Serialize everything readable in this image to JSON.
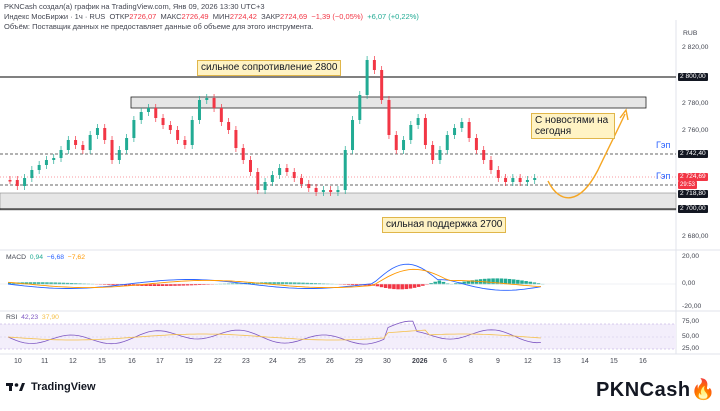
{
  "header": {
    "line1": "PKNCash создал(а) график на TradingView.com, Янв 09, 2026 13:30 UTC+3",
    "symbol": "Индекс МосБиржи · 1ч · RUS",
    "o_label": "ОТКР",
    "o_value": "2726,07",
    "h_label": "МАКС",
    "h_value": "2726,49",
    "l_label": "МИН",
    "l_value": "2724,42",
    "c_label": "ЗАКР",
    "c_value": "2724,69",
    "change": "−1,39 (−0,05%)",
    "change2": "+6,07 (+0,22%)",
    "volume_note": "Объём: Поставщик данных не предоставляет данные об объеме для этого инструмента.",
    "currency": "RUB"
  },
  "annotations": {
    "resistance": "сильное сопротивление 2800",
    "support": "сильная поддержка 2700",
    "news": "С новостями на сегодня",
    "gap1": "Гэп",
    "gap2": "Гэп"
  },
  "price_axis": {
    "ticks": [
      "2820,00",
      "2800,00",
      "2780,00",
      "2760,00",
      "2742,40",
      "2724,69",
      "2718,80",
      "2700,00",
      "2680,00"
    ],
    "tag_2800": "2 800,00",
    "tag_gap": "2 742,40",
    "tag_last": "2 724,69",
    "tag_timer": "29:53",
    "tag_low": "2 718,80",
    "tag_2700": "2 700,00",
    "plain": [
      "2 820,00",
      "2 780,00",
      "2 760,00",
      "2 680,00"
    ]
  },
  "macd": {
    "label": "MACD",
    "v1": "0,94",
    "v2": "−6,68",
    "v3": "−7,62",
    "ticks": [
      "20,00",
      "0,00",
      "-20,00"
    ]
  },
  "rsi": {
    "label": "RSI",
    "v1": "42,23",
    "v2": "37,90",
    "ticks": [
      "75,00",
      "50,00",
      "25,00"
    ]
  },
  "time_axis": [
    "10",
    "11",
    "12",
    "15",
    "16",
    "17",
    "19",
    "22",
    "23",
    "24",
    "25",
    "26",
    "29",
    "30",
    "2026",
    "6",
    "8",
    "9",
    "12",
    "13",
    "14",
    "15",
    "16"
  ],
  "footer": {
    "tv": "TradingView",
    "brand": "PKNCash"
  },
  "colors": {
    "up": "#22ab94",
    "down": "#f23645",
    "macd_line": "#2962ff",
    "signal_line": "#ff9800",
    "rsi_line": "#7e57c2",
    "arrow": "#f5a623"
  }
}
